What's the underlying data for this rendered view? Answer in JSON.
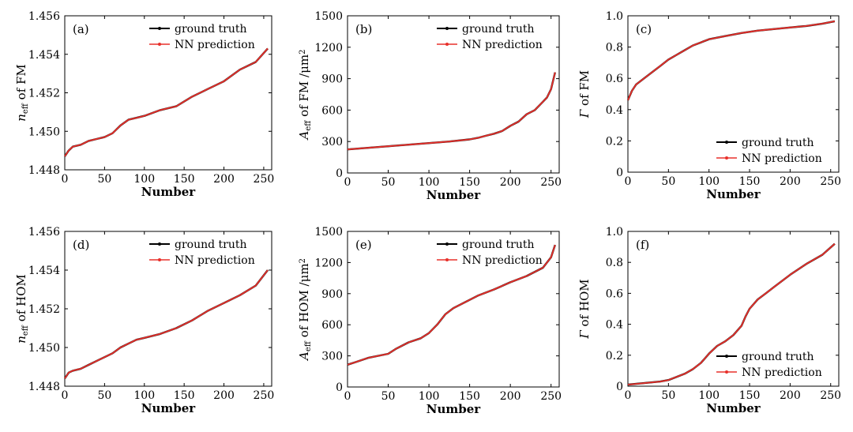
{
  "chart_data": [
    {
      "type": "line",
      "panel_label": "(a)",
      "xlabel": "Number",
      "ylabel_parts": [
        {
          "t": "n",
          "style": "italic"
        },
        {
          "t": "eff",
          "sub": true
        },
        {
          "t": " of FM"
        }
      ],
      "xlim": [
        0,
        260
      ],
      "ylim": [
        1.448,
        1.456
      ],
      "xticks": [
        0,
        50,
        100,
        150,
        200,
        250
      ],
      "yticks": [
        1.448,
        1.45,
        1.452,
        1.454,
        1.456
      ],
      "ytick_labels": [
        "1.448",
        "1.450",
        "1.452",
        "1.454",
        "1.456"
      ],
      "legend_position": "top-right",
      "series": [
        {
          "name": "ground truth",
          "color": "#000000",
          "x": [
            0,
            5,
            10,
            20,
            30,
            40,
            50,
            60,
            70,
            80,
            90,
            100,
            120,
            140,
            160,
            180,
            200,
            220,
            240,
            255
          ],
          "y": [
            1.4487,
            1.449,
            1.4492,
            1.4493,
            1.4495,
            1.4496,
            1.4497,
            1.4499,
            1.4503,
            1.4506,
            1.4507,
            1.4508,
            1.4511,
            1.4513,
            1.4518,
            1.4522,
            1.4526,
            1.4532,
            1.4536,
            1.4543
          ]
        },
        {
          "name": "NN prediction",
          "color": "#e8302b",
          "x": [
            0,
            5,
            10,
            20,
            30,
            40,
            50,
            60,
            70,
            80,
            90,
            100,
            120,
            140,
            160,
            180,
            200,
            220,
            240,
            255
          ],
          "y": [
            1.4487,
            1.449,
            1.4492,
            1.4493,
            1.4495,
            1.4496,
            1.4497,
            1.4499,
            1.4503,
            1.4506,
            1.4507,
            1.4508,
            1.4511,
            1.4513,
            1.4518,
            1.4522,
            1.4526,
            1.4532,
            1.4536,
            1.4543
          ]
        }
      ]
    },
    {
      "type": "line",
      "panel_label": "(b)",
      "xlabel": "Number",
      "ylabel_parts": [
        {
          "t": "A",
          "style": "italic"
        },
        {
          "t": "eff",
          "sub": true
        },
        {
          "t": " of FM /μm"
        },
        {
          "t": "2",
          "sup": true
        }
      ],
      "xlim": [
        0,
        260
      ],
      "ylim": [
        0,
        1500
      ],
      "xticks": [
        0,
        50,
        100,
        150,
        200,
        250
      ],
      "yticks": [
        0,
        300,
        600,
        900,
        1200,
        1500
      ],
      "ytick_labels": [
        "0",
        "300",
        "600",
        "900",
        "1200",
        "1500"
      ],
      "legend_position": "top-right",
      "series": [
        {
          "name": "ground truth",
          "color": "#000000",
          "x": [
            0,
            25,
            50,
            75,
            100,
            125,
            150,
            160,
            170,
            180,
            190,
            200,
            210,
            220,
            230,
            240,
            245,
            250,
            255
          ],
          "y": [
            225,
            240,
            255,
            270,
            285,
            300,
            320,
            335,
            355,
            375,
            400,
            450,
            490,
            560,
            600,
            680,
            720,
            800,
            960
          ]
        },
        {
          "name": "NN prediction",
          "color": "#e8302b",
          "x": [
            0,
            25,
            50,
            75,
            100,
            125,
            150,
            160,
            170,
            180,
            190,
            200,
            210,
            220,
            230,
            240,
            245,
            250,
            255
          ],
          "y": [
            225,
            240,
            255,
            270,
            285,
            300,
            320,
            335,
            355,
            375,
            400,
            450,
            490,
            560,
            600,
            680,
            720,
            800,
            960
          ]
        }
      ]
    },
    {
      "type": "line",
      "panel_label": "(c)",
      "xlabel": "Number",
      "ylabel_parts": [
        {
          "t": "Γ",
          "style": "italic"
        },
        {
          "t": " of FM"
        }
      ],
      "xlim": [
        0,
        260
      ],
      "ylim": [
        0,
        1.0
      ],
      "xticks": [
        0,
        50,
        100,
        150,
        200,
        250
      ],
      "yticks": [
        0,
        0.2,
        0.4,
        0.6,
        0.8,
        1.0
      ],
      "ytick_labels": [
        "0",
        "0.2",
        "0.4",
        "0.6",
        "0.8",
        "1.0"
      ],
      "legend_position": "bottom-right",
      "series": [
        {
          "name": "ground truth",
          "color": "#000000",
          "x": [
            0,
            5,
            10,
            20,
            30,
            40,
            50,
            60,
            70,
            80,
            90,
            100,
            120,
            140,
            160,
            180,
            200,
            220,
            240,
            255
          ],
          "y": [
            0.46,
            0.52,
            0.56,
            0.6,
            0.64,
            0.68,
            0.72,
            0.75,
            0.78,
            0.81,
            0.83,
            0.85,
            0.87,
            0.89,
            0.905,
            0.915,
            0.925,
            0.935,
            0.95,
            0.965
          ]
        },
        {
          "name": "NN prediction",
          "color": "#e8302b",
          "x": [
            0,
            5,
            10,
            20,
            30,
            40,
            50,
            60,
            70,
            80,
            90,
            100,
            120,
            140,
            160,
            180,
            200,
            220,
            240,
            255
          ],
          "y": [
            0.46,
            0.52,
            0.56,
            0.6,
            0.64,
            0.68,
            0.72,
            0.75,
            0.78,
            0.81,
            0.83,
            0.85,
            0.87,
            0.89,
            0.905,
            0.915,
            0.925,
            0.935,
            0.95,
            0.965
          ]
        }
      ]
    },
    {
      "type": "line",
      "panel_label": "(d)",
      "xlabel": "Number",
      "ylabel_parts": [
        {
          "t": "n",
          "style": "italic"
        },
        {
          "t": "eff",
          "sub": true
        },
        {
          "t": " of HOM"
        }
      ],
      "xlim": [
        0,
        260
      ],
      "ylim": [
        1.448,
        1.456
      ],
      "xticks": [
        0,
        50,
        100,
        150,
        200,
        250
      ],
      "yticks": [
        1.448,
        1.45,
        1.452,
        1.454,
        1.456
      ],
      "ytick_labels": [
        "1.448",
        "1.450",
        "1.452",
        "1.454",
        "1.456"
      ],
      "legend_position": "top-right",
      "series": [
        {
          "name": "ground truth",
          "color": "#000000",
          "x": [
            0,
            5,
            10,
            20,
            30,
            40,
            50,
            60,
            70,
            80,
            90,
            100,
            120,
            140,
            160,
            180,
            200,
            220,
            240,
            255
          ],
          "y": [
            1.4484,
            1.4487,
            1.4488,
            1.4489,
            1.4491,
            1.4493,
            1.4495,
            1.4497,
            1.45,
            1.4502,
            1.4504,
            1.4505,
            1.4507,
            1.451,
            1.4514,
            1.4519,
            1.4523,
            1.4527,
            1.4532,
            1.454
          ]
        },
        {
          "name": "NN prediction",
          "color": "#e8302b",
          "x": [
            0,
            5,
            10,
            20,
            30,
            40,
            50,
            60,
            70,
            80,
            90,
            100,
            120,
            140,
            160,
            180,
            200,
            220,
            240,
            255
          ],
          "y": [
            1.4484,
            1.4487,
            1.4488,
            1.4489,
            1.4491,
            1.4493,
            1.4495,
            1.4497,
            1.45,
            1.4502,
            1.4504,
            1.4505,
            1.4507,
            1.451,
            1.4514,
            1.4519,
            1.4523,
            1.4527,
            1.4532,
            1.454
          ]
        }
      ]
    },
    {
      "type": "line",
      "panel_label": "(e)",
      "xlabel": "Number",
      "ylabel_parts": [
        {
          "t": "A",
          "style": "italic"
        },
        {
          "t": "eff",
          "sub": true
        },
        {
          "t": " of HOM /μm"
        },
        {
          "t": "2",
          "sup": true
        }
      ],
      "xlim": [
        0,
        260
      ],
      "ylim": [
        0,
        1500
      ],
      "xticks": [
        0,
        50,
        100,
        150,
        200,
        250
      ],
      "yticks": [
        0,
        300,
        600,
        900,
        1200,
        1500
      ],
      "ytick_labels": [
        "0",
        "300",
        "600",
        "900",
        "1200",
        "1500"
      ],
      "legend_position": "top-right",
      "series": [
        {
          "name": "ground truth",
          "color": "#000000",
          "x": [
            0,
            10,
            25,
            50,
            60,
            75,
            90,
            100,
            110,
            120,
            130,
            140,
            150,
            160,
            180,
            200,
            220,
            240,
            250,
            255
          ],
          "y": [
            215,
            240,
            280,
            320,
            370,
            430,
            470,
            520,
            600,
            700,
            760,
            800,
            840,
            880,
            940,
            1010,
            1070,
            1150,
            1250,
            1370
          ]
        },
        {
          "name": "NN prediction",
          "color": "#e8302b",
          "x": [
            0,
            10,
            25,
            50,
            60,
            75,
            90,
            100,
            110,
            120,
            130,
            140,
            150,
            160,
            180,
            200,
            220,
            240,
            250,
            255
          ],
          "y": [
            215,
            240,
            280,
            320,
            370,
            430,
            470,
            520,
            600,
            700,
            760,
            800,
            840,
            880,
            940,
            1010,
            1070,
            1150,
            1250,
            1370
          ]
        }
      ]
    },
    {
      "type": "line",
      "panel_label": "(f)",
      "xlabel": "Number",
      "ylabel_parts": [
        {
          "t": "Γ",
          "style": "italic"
        },
        {
          "t": " of HOM"
        }
      ],
      "xlim": [
        0,
        260
      ],
      "ylim": [
        0,
        1.0
      ],
      "xticks": [
        0,
        50,
        100,
        150,
        200,
        250
      ],
      "yticks": [
        0,
        0.2,
        0.4,
        0.6,
        0.8,
        1.0
      ],
      "ytick_labels": [
        "0",
        "0.2",
        "0.4",
        "0.6",
        "0.8",
        "1.0"
      ],
      "legend_position": "bottom-right",
      "series": [
        {
          "name": "ground truth",
          "color": "#000000",
          "x": [
            0,
            20,
            40,
            50,
            60,
            70,
            80,
            90,
            100,
            110,
            120,
            130,
            140,
            145,
            150,
            160,
            170,
            180,
            200,
            220,
            240,
            255
          ],
          "y": [
            0.01,
            0.02,
            0.03,
            0.04,
            0.06,
            0.08,
            0.11,
            0.15,
            0.21,
            0.26,
            0.29,
            0.33,
            0.39,
            0.45,
            0.5,
            0.56,
            0.6,
            0.64,
            0.72,
            0.79,
            0.85,
            0.92
          ]
        },
        {
          "name": "NN prediction",
          "color": "#e8302b",
          "x": [
            0,
            20,
            40,
            50,
            60,
            70,
            80,
            90,
            100,
            110,
            120,
            130,
            140,
            145,
            150,
            160,
            170,
            180,
            200,
            220,
            240,
            255
          ],
          "y": [
            0.01,
            0.02,
            0.03,
            0.04,
            0.06,
            0.08,
            0.11,
            0.15,
            0.21,
            0.26,
            0.29,
            0.33,
            0.39,
            0.45,
            0.5,
            0.56,
            0.6,
            0.64,
            0.72,
            0.79,
            0.85,
            0.92
          ]
        }
      ]
    }
  ]
}
